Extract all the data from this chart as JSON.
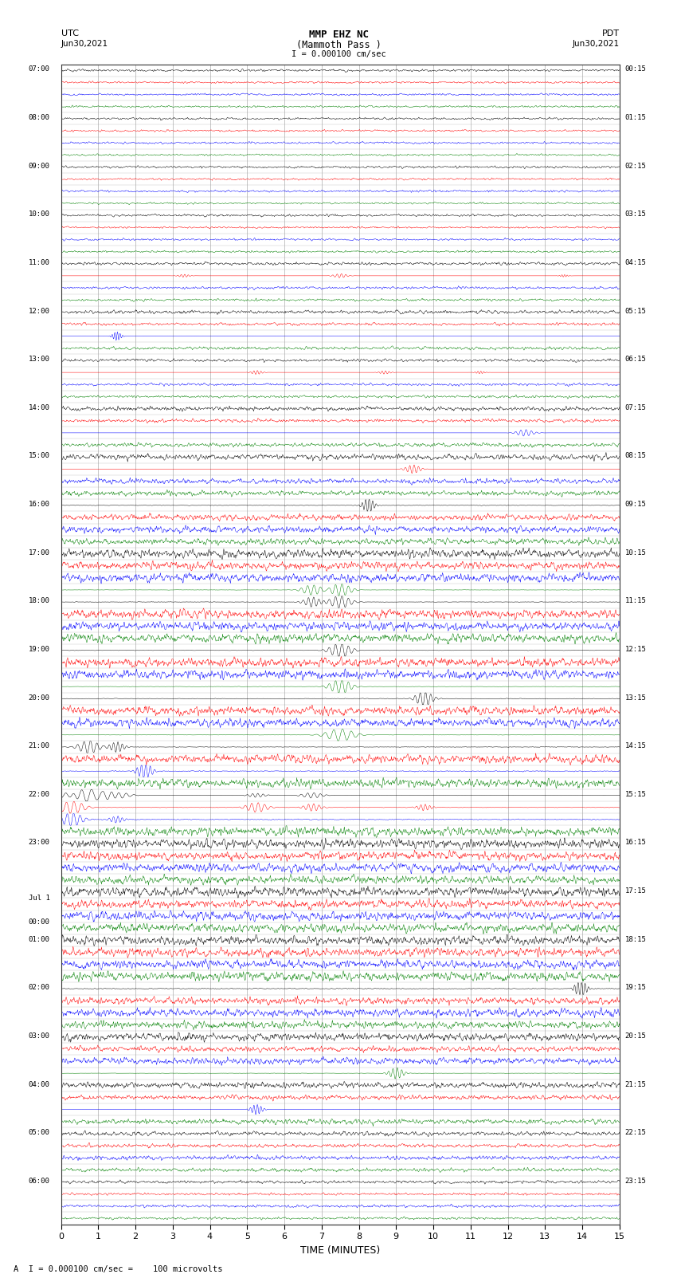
{
  "title_line1": "MMP EHZ NC",
  "title_line2": "(Mammoth Pass )",
  "scale_text": "I = 0.000100 cm/sec",
  "left_label": "UTC",
  "left_date": "Jun30,2021",
  "right_label": "PDT",
  "right_date": "Jun30,2021",
  "xlabel": "TIME (MINUTES)",
  "footer_text": "A  I = 0.000100 cm/sec =    100 microvolts",
  "background_color": "#ffffff",
  "utc_labels": [
    "07:00",
    "08:00",
    "09:00",
    "10:00",
    "11:00",
    "12:00",
    "13:00",
    "14:00",
    "15:00",
    "16:00",
    "17:00",
    "18:00",
    "19:00",
    "20:00",
    "21:00",
    "22:00",
    "23:00",
    "Jul 1\n00:00",
    "01:00",
    "02:00",
    "03:00",
    "04:00",
    "05:00",
    "06:00"
  ],
  "pdt_labels": [
    "00:15",
    "01:15",
    "02:15",
    "03:15",
    "04:15",
    "05:15",
    "06:15",
    "07:15",
    "08:15",
    "09:15",
    "10:15",
    "11:15",
    "12:15",
    "13:15",
    "14:15",
    "15:15",
    "16:15",
    "17:15",
    "18:15",
    "19:15",
    "20:15",
    "21:15",
    "22:15",
    "23:15"
  ],
  "n_hours": 24,
  "traces_per_hour": 4,
  "n_minutes": 15,
  "sps": 100,
  "fig_width": 8.5,
  "fig_height": 16.13,
  "dpi": 100,
  "noise_by_hour": [
    0.008,
    0.008,
    0.008,
    0.008,
    0.01,
    0.012,
    0.01,
    0.015,
    0.02,
    0.025,
    0.035,
    0.04,
    0.045,
    0.055,
    0.08,
    0.12,
    0.06,
    0.045,
    0.04,
    0.03,
    0.025,
    0.02,
    0.015,
    0.01
  ],
  "grid_color": "#aaaaaa",
  "trace_bg": "#ffffff",
  "label_fontsize": 6.5,
  "title_fontsize": 9,
  "colors_cycle": [
    "black",
    "red",
    "blue",
    "green"
  ]
}
